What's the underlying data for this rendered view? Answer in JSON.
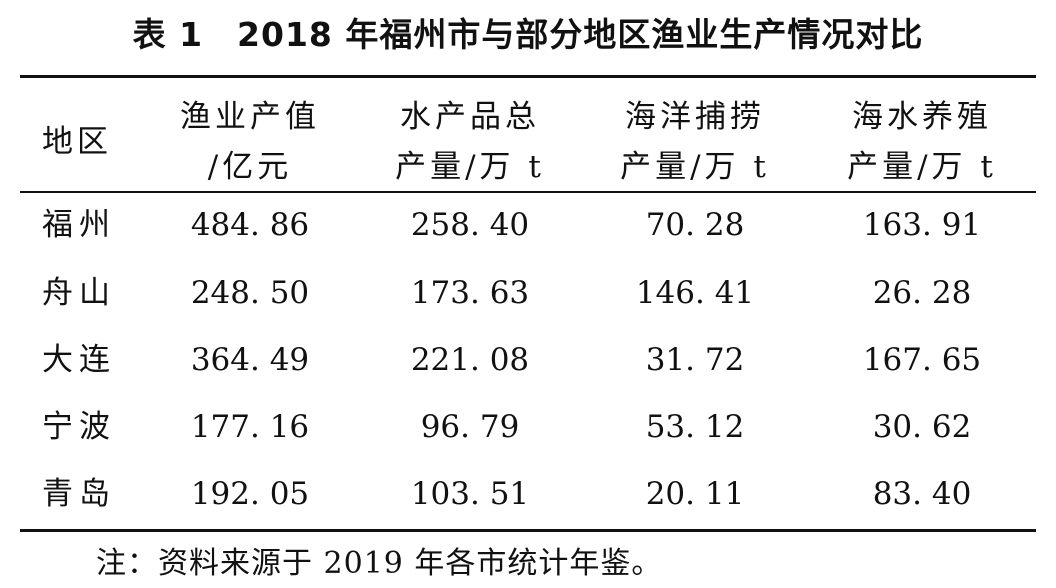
{
  "title": "表 1　2018 年福州市与部分地区渔业生产情况对比",
  "headers": [
    {
      "lines": [
        "地区"
      ]
    },
    {
      "lines": [
        "渔业产值",
        "/亿元"
      ]
    },
    {
      "lines": [
        "水产品总",
        "产量/万 t"
      ]
    },
    {
      "lines": [
        "海洋捕捞",
        "产量/万 t"
      ]
    },
    {
      "lines": [
        "海水养殖",
        "产量/万 t"
      ]
    }
  ],
  "rows": [
    {
      "region": "福州",
      "values": [
        "484. 86",
        "258. 40",
        "70. 28",
        "163. 91"
      ]
    },
    {
      "region": "舟山",
      "values": [
        "248. 50",
        "173. 63",
        "146. 41",
        "26. 28"
      ]
    },
    {
      "region": "大连",
      "values": [
        "364. 49",
        "221. 08",
        "31. 72",
        "167. 65"
      ]
    },
    {
      "region": "宁波",
      "values": [
        "177. 16",
        "96. 79",
        "53. 12",
        "30. 62"
      ]
    },
    {
      "region": "青岛",
      "values": [
        "192. 05",
        "103. 51",
        "20. 11",
        "83. 40"
      ]
    }
  ],
  "note": "注：资料来源于 2019 年各市统计年鉴。"
}
